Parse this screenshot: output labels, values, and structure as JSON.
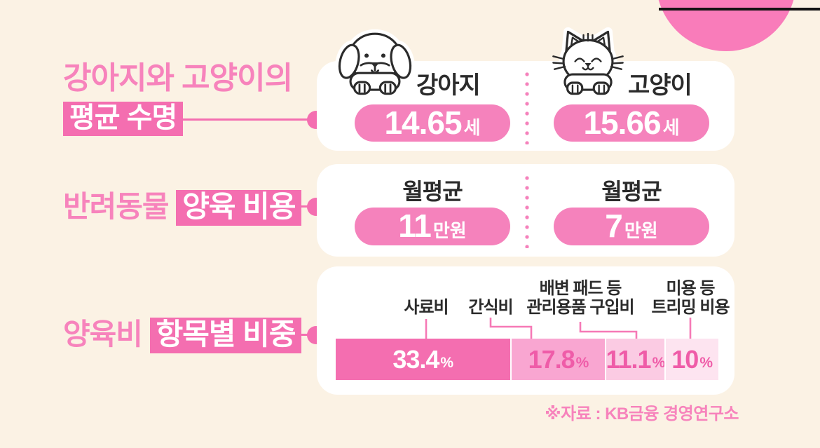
{
  "colors": {
    "background": "#fbf2e4",
    "accent_pink": "#f46eb0",
    "header_text_pink": "#f783bc",
    "pill_pink": "#f582bc",
    "decor_circle_pink": "#f97cba",
    "dark_text": "#2b2b2b",
    "top_bar_black": "#141414"
  },
  "headers": [
    {
      "plain": "강아지와 고양이의",
      "highlight": "평균 수명"
    },
    {
      "plain": "반려동물",
      "highlight": "양육 비용"
    },
    {
      "plain": "양육비",
      "highlight": "항목별 비중"
    }
  ],
  "lifespan": {
    "dog": {
      "icon": "dog-icon",
      "label": "강아지",
      "value": "14.65",
      "unit": "세"
    },
    "cat": {
      "icon": "cat-icon",
      "label": "고양이",
      "value": "15.66",
      "unit": "세"
    }
  },
  "monthly_cost": {
    "dog": {
      "label": "월평균",
      "value": "11",
      "unit": "만원"
    },
    "cat": {
      "label": "월평균",
      "value": "7",
      "unit": "만원"
    }
  },
  "chart_data": {
    "type": "bar",
    "orientation": "horizontal-stacked",
    "title": "양육비 항목별 비중",
    "categories": [
      "사료비",
      "간식비",
      "배변 패드 등 관리용품 구입비",
      "미용 등 트리밍 비용"
    ],
    "values": [
      33.4,
      17.8,
      11.1,
      10
    ],
    "unit": "%",
    "label_lines": [
      [
        "사료비"
      ],
      [
        "간식비"
      ],
      [
        "배변 패드 등",
        "관리용품 구입비"
      ],
      [
        "미용 등",
        "트리밍 비용"
      ]
    ],
    "segment_colors": [
      "#f46eb0",
      "#f9a6d1",
      "#fbcbe3",
      "#fde4f0"
    ],
    "value_colors": [
      "#ffffff",
      "#ef5ca8",
      "#ef5ca8",
      "#ef5ca8"
    ],
    "grid": false,
    "legend_position": "none"
  },
  "source": "※자료 : KB금융 경영연구소"
}
